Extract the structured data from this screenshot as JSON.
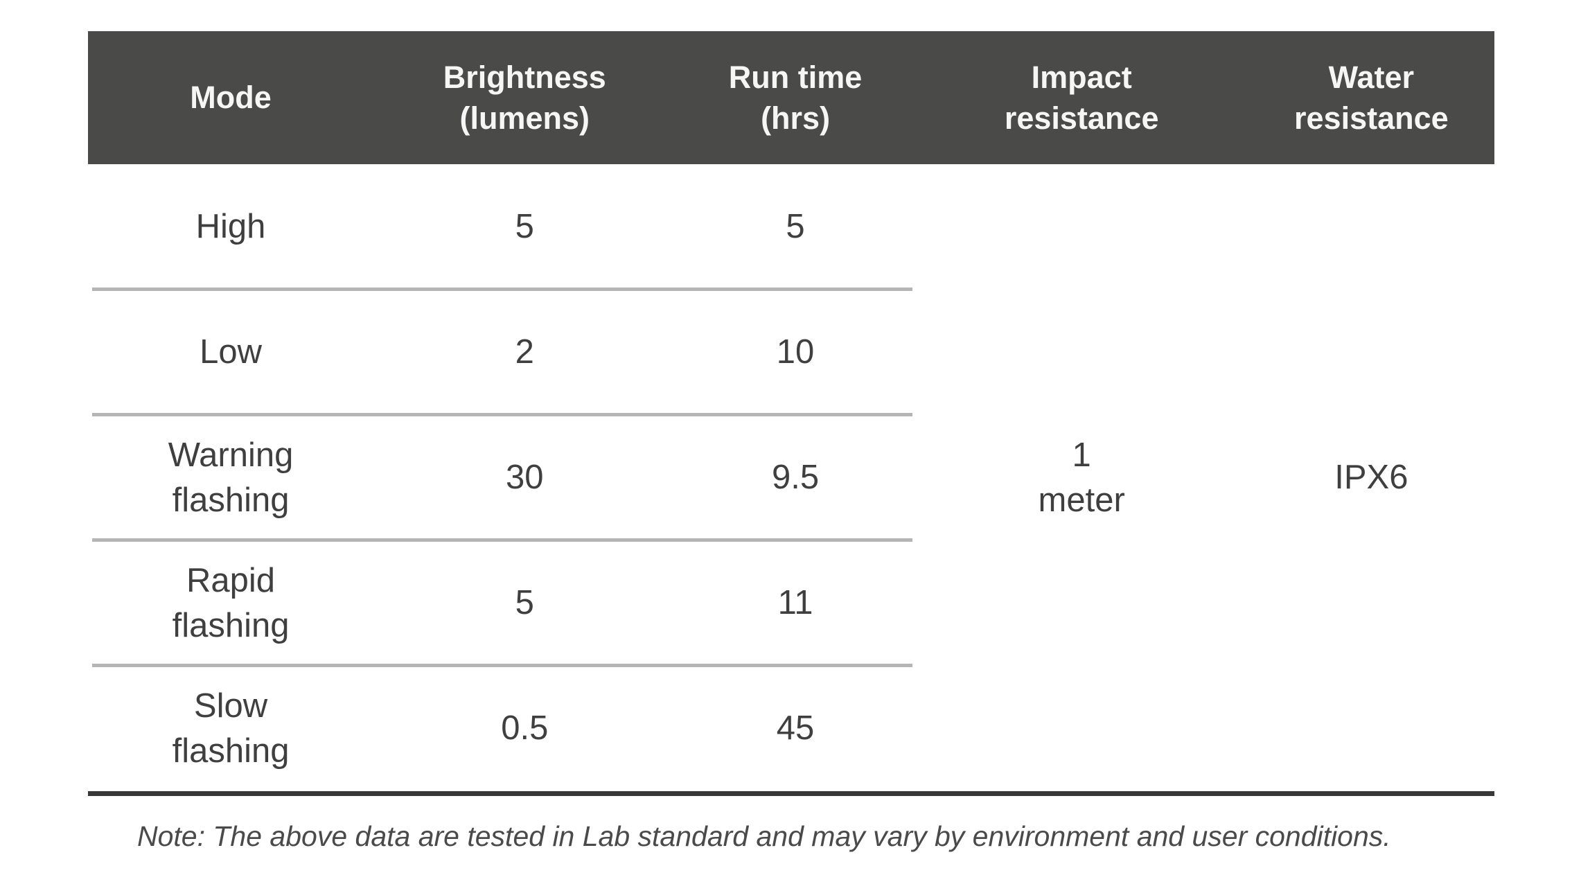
{
  "table": {
    "columns": [
      {
        "label": "Mode"
      },
      {
        "label": "Brightness\n(lumens)"
      },
      {
        "label": "Run time\n(hrs)"
      },
      {
        "label": "Impact\nresistance"
      },
      {
        "label": "Water\nresistance"
      }
    ],
    "rows": [
      {
        "mode": "High",
        "brightness": "5",
        "run_time": "5"
      },
      {
        "mode": "Low",
        "brightness": "2",
        "run_time": "10"
      },
      {
        "mode": "Warning\nflashing",
        "brightness": "30",
        "run_time": "9.5"
      },
      {
        "mode": "Rapid\nflashing",
        "brightness": "5",
        "run_time": "11"
      },
      {
        "mode": "Slow\nflashing",
        "brightness": "0.5",
        "run_time": "45"
      }
    ],
    "merged": {
      "impact_resistance": "1\nmeter",
      "water_resistance": "IPX6"
    }
  },
  "note": "Note: The above data are tested in Lab standard and may vary by environment and user conditions.",
  "colors": {
    "header_bg": "#4a4a48",
    "header_text": "#f6f6f6",
    "body_text": "#3f3f3f",
    "separator": "#b5b5b5",
    "bottom_rule": "#383838",
    "background": "#ffffff"
  }
}
